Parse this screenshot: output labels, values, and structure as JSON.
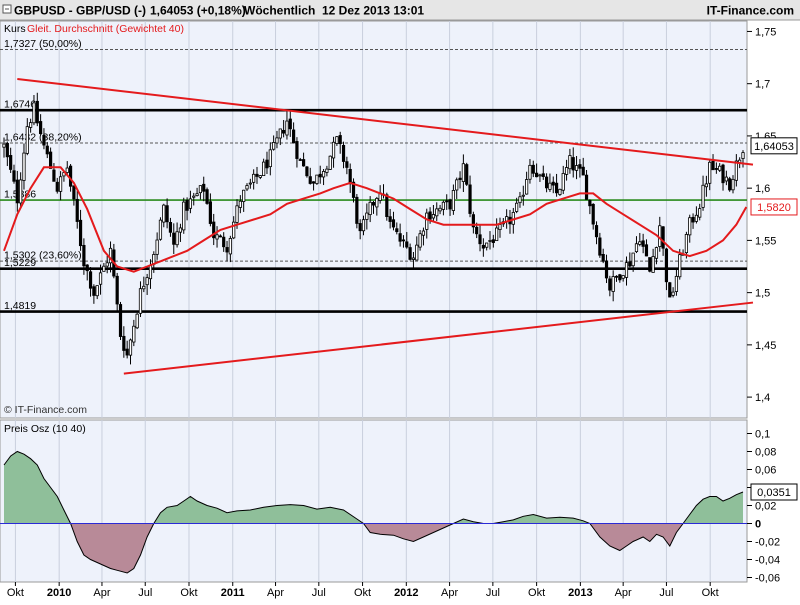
{
  "header": {
    "symbol": "GBPUSD - GBP/USD (-)",
    "price": "1,64053 (+0,18%)",
    "period": "Wöchentlich",
    "datetime": "12 Dez 2013 13:01",
    "brand": "IT-Finance.com"
  },
  "colors": {
    "candle": "#000000",
    "moving_average": "#e41a1c",
    "trend_line": "#e41a1c",
    "support_line": "#000000",
    "green_line": "#2a8a1c",
    "price_badge": "#ffffff",
    "ma_badge": "#e41a1c",
    "osc_positive": "#8fbf9a",
    "osc_negative": "#b88a98",
    "background": "#eef2fb"
  },
  "chart_data": [
    {
      "type": "candlestick",
      "title": "Kurs",
      "legend": "Kurs Gleit. Durchschnitt (Gewichtet 40)",
      "watermark": "© IT-Finance.com",
      "last_price_label": "1,64053",
      "ma_last_label": "1,5820",
      "ylim": [
        1.38,
        1.76
      ],
      "yticks": [
        "1,75",
        "1,7",
        "1,65",
        "1,6",
        "1,55",
        "1,5",
        "1,45",
        "1,4"
      ],
      "ytick_values": [
        1.75,
        1.7,
        1.65,
        1.6,
        1.55,
        1.5,
        1.45,
        1.4
      ],
      "x_start": "2009-09-07",
      "x_end": "2013-12-09",
      "candle_step_days": 7,
      "horizontal_lines": [
        {
          "value": 1.7327,
          "label": "1,7327 (50,00%)",
          "style": "dashed"
        },
        {
          "value": 1.6746,
          "label": "1,6746",
          "style": "solid-black-thick"
        },
        {
          "value": 1.6432,
          "label": "1,6432 (38,20%)",
          "style": "dashed"
        },
        {
          "value": 1.5886,
          "label": "1,5886",
          "style": "solid-green"
        },
        {
          "value": 1.5302,
          "label": "1,5302 (23,60%)",
          "style": "dashed"
        },
        {
          "value": 1.5229,
          "label": "1,5229",
          "style": "solid-black-thick"
        },
        {
          "value": 1.4819,
          "label": "1,4819",
          "style": "solid-black-thick"
        }
      ],
      "trend_lines": [
        {
          "from": {
            "x": "2009-10-05",
            "y": 1.7045
          },
          "to": {
            "x": "2013-12-30",
            "y": 1.6225
          }
        },
        {
          "from": {
            "x": "2010-05-17",
            "y": 1.4225
          },
          "to": {
            "x": "2013-12-30",
            "y": 1.4905
          }
        }
      ],
      "price_path": [
        [
          "2009-09-07",
          1.64
        ],
        [
          "2009-10-05",
          1.59
        ],
        [
          "2009-10-26",
          1.66
        ],
        [
          "2009-11-09",
          1.675
        ],
        [
          "2009-11-30",
          1.64
        ],
        [
          "2009-12-28",
          1.6
        ],
        [
          "2010-01-18",
          1.62
        ],
        [
          "2010-02-22",
          1.53
        ],
        [
          "2010-03-15",
          1.5
        ],
        [
          "2010-04-19",
          1.54
        ],
        [
          "2010-05-10",
          1.46
        ],
        [
          "2010-05-24",
          1.44
        ],
        [
          "2010-06-21",
          1.5
        ],
        [
          "2010-07-19",
          1.54
        ],
        [
          "2010-08-09",
          1.58
        ],
        [
          "2010-08-30",
          1.545
        ],
        [
          "2010-09-20",
          1.58
        ],
        [
          "2010-10-11",
          1.59
        ],
        [
          "2010-11-01",
          1.6
        ],
        [
          "2010-11-22",
          1.555
        ],
        [
          "2010-12-20",
          1.545
        ],
        [
          "2011-01-17",
          1.59
        ],
        [
          "2011-02-28",
          1.615
        ],
        [
          "2011-03-21",
          1.63
        ],
        [
          "2011-04-25",
          1.665
        ],
        [
          "2011-05-23",
          1.625
        ],
        [
          "2011-06-20",
          1.605
        ],
        [
          "2011-07-18",
          1.625
        ],
        [
          "2011-08-08",
          1.645
        ],
        [
          "2011-08-29",
          1.62
        ],
        [
          "2011-09-26",
          1.555
        ],
        [
          "2011-10-17",
          1.58
        ],
        [
          "2011-11-07",
          1.6
        ],
        [
          "2011-11-28",
          1.565
        ],
        [
          "2011-12-19",
          1.55
        ],
        [
          "2012-01-16",
          1.535
        ],
        [
          "2012-02-13",
          1.575
        ],
        [
          "2012-03-12",
          1.58
        ],
        [
          "2012-04-02",
          1.585
        ],
        [
          "2012-04-30",
          1.62
        ],
        [
          "2012-05-21",
          1.56
        ],
        [
          "2012-06-11",
          1.545
        ],
        [
          "2012-07-09",
          1.555
        ],
        [
          "2012-08-06",
          1.57
        ],
        [
          "2012-08-27",
          1.585
        ],
        [
          "2012-09-17",
          1.625
        ],
        [
          "2012-10-15",
          1.605
        ],
        [
          "2012-11-12",
          1.595
        ],
        [
          "2012-12-10",
          1.625
        ],
        [
          "2013-01-07",
          1.61
        ],
        [
          "2013-02-04",
          1.555
        ],
        [
          "2013-03-04",
          1.505
        ],
        [
          "2013-03-18",
          1.515
        ],
        [
          "2013-04-15",
          1.53
        ],
        [
          "2013-05-06",
          1.555
        ],
        [
          "2013-05-27",
          1.52
        ],
        [
          "2013-06-17",
          1.565
        ],
        [
          "2013-07-08",
          1.49
        ],
        [
          "2013-07-29",
          1.53
        ],
        [
          "2013-08-19",
          1.565
        ],
        [
          "2013-09-09",
          1.585
        ],
        [
          "2013-09-30",
          1.62
        ],
        [
          "2013-10-21",
          1.615
        ],
        [
          "2013-11-11",
          1.605
        ],
        [
          "2013-12-09",
          1.64
        ]
      ],
      "ma_path": [
        [
          "2009-09-07",
          1.54
        ],
        [
          "2009-10-05",
          1.575
        ],
        [
          "2009-11-02",
          1.6
        ],
        [
          "2009-11-30",
          1.62
        ],
        [
          "2010-01-04",
          1.62
        ],
        [
          "2010-02-01",
          1.605
        ],
        [
          "2010-03-01",
          1.58
        ],
        [
          "2010-04-05",
          1.54
        ],
        [
          "2010-05-03",
          1.525
        ],
        [
          "2010-06-07",
          1.52
        ],
        [
          "2010-07-05",
          1.525
        ],
        [
          "2010-08-02",
          1.53
        ],
        [
          "2010-08-30",
          1.535
        ],
        [
          "2010-09-27",
          1.54
        ],
        [
          "2010-11-01",
          1.55
        ],
        [
          "2010-12-06",
          1.56
        ],
        [
          "2011-01-10",
          1.565
        ],
        [
          "2011-02-14",
          1.57
        ],
        [
          "2011-03-21",
          1.575
        ],
        [
          "2011-04-25",
          1.585
        ],
        [
          "2011-05-30",
          1.59
        ],
        [
          "2011-07-04",
          1.595
        ],
        [
          "2011-08-01",
          1.6
        ],
        [
          "2011-09-05",
          1.605
        ],
        [
          "2011-10-10",
          1.6
        ],
        [
          "2011-11-07",
          1.595
        ],
        [
          "2011-12-05",
          1.59
        ],
        [
          "2012-01-09",
          1.58
        ],
        [
          "2012-02-13",
          1.57
        ],
        [
          "2012-03-19",
          1.565
        ],
        [
          "2012-04-23",
          1.565
        ],
        [
          "2012-06-04",
          1.565
        ],
        [
          "2012-07-09",
          1.565
        ],
        [
          "2012-08-13",
          1.57
        ],
        [
          "2012-09-17",
          1.575
        ],
        [
          "2012-10-22",
          1.585
        ],
        [
          "2012-11-26",
          1.59
        ],
        [
          "2012-12-31",
          1.595
        ],
        [
          "2013-01-28",
          1.595
        ],
        [
          "2013-02-25",
          1.585
        ],
        [
          "2013-04-01",
          1.575
        ],
        [
          "2013-05-06",
          1.565
        ],
        [
          "2013-06-10",
          1.555
        ],
        [
          "2013-07-15",
          1.54
        ],
        [
          "2013-08-19",
          1.535
        ],
        [
          "2013-09-23",
          1.54
        ],
        [
          "2013-10-28",
          1.55
        ],
        [
          "2013-11-25",
          1.565
        ],
        [
          "2013-12-16",
          1.582
        ]
      ]
    },
    {
      "type": "area",
      "title": "Preis Osz (10 40)",
      "last_value_label": "0,0351",
      "ylim": [
        -0.065,
        0.115
      ],
      "yticks": [
        "0,1",
        "0,08",
        "0,06",
        "0,04",
        "0,02",
        "0",
        "-0,02",
        "-0,04",
        "-0,06"
      ],
      "ytick_values": [
        0.1,
        0.08,
        0.06,
        0.04,
        0.02,
        0,
        -0.02,
        -0.04,
        -0.06
      ],
      "x_start": "2009-09-07",
      "x_end": "2013-12-09",
      "points": [
        [
          "2009-09-07",
          0.065
        ],
        [
          "2009-09-21",
          0.075
        ],
        [
          "2009-10-05",
          0.08
        ],
        [
          "2009-10-19",
          0.077
        ],
        [
          "2009-11-02",
          0.072
        ],
        [
          "2009-11-16",
          0.065
        ],
        [
          "2009-11-30",
          0.05
        ],
        [
          "2009-12-14",
          0.04
        ],
        [
          "2009-12-28",
          0.03
        ],
        [
          "2010-01-11",
          0.015
        ],
        [
          "2010-01-25",
          0.0
        ],
        [
          "2010-02-08",
          -0.02
        ],
        [
          "2010-02-22",
          -0.035
        ],
        [
          "2010-03-08",
          -0.04
        ],
        [
          "2010-03-29",
          -0.045
        ],
        [
          "2010-04-19",
          -0.05
        ],
        [
          "2010-05-03",
          -0.052
        ],
        [
          "2010-05-24",
          -0.055
        ],
        [
          "2010-06-07",
          -0.05
        ],
        [
          "2010-06-21",
          -0.035
        ],
        [
          "2010-07-05",
          -0.015
        ],
        [
          "2010-07-19",
          0.0
        ],
        [
          "2010-08-02",
          0.012
        ],
        [
          "2010-08-16",
          0.018
        ],
        [
          "2010-09-06",
          0.02
        ],
        [
          "2010-09-20",
          0.025
        ],
        [
          "2010-10-04",
          0.03
        ],
        [
          "2010-10-18",
          0.025
        ],
        [
          "2010-11-08",
          0.02
        ],
        [
          "2010-11-29",
          0.017
        ],
        [
          "2010-12-20",
          0.012
        ],
        [
          "2011-01-10",
          0.014
        ],
        [
          "2011-02-07",
          0.015
        ],
        [
          "2011-03-07",
          0.018
        ],
        [
          "2011-04-04",
          0.02
        ],
        [
          "2011-05-02",
          0.021
        ],
        [
          "2011-05-30",
          0.02
        ],
        [
          "2011-06-27",
          0.016
        ],
        [
          "2011-07-25",
          0.018
        ],
        [
          "2011-08-22",
          0.015
        ],
        [
          "2011-09-19",
          0.005
        ],
        [
          "2011-10-03",
          0.0
        ],
        [
          "2011-10-17",
          -0.01
        ],
        [
          "2011-11-07",
          -0.012
        ],
        [
          "2011-12-05",
          -0.013
        ],
        [
          "2011-12-26",
          -0.017
        ],
        [
          "2012-01-16",
          -0.02
        ],
        [
          "2012-02-06",
          -0.015
        ],
        [
          "2012-02-27",
          -0.01
        ],
        [
          "2012-03-19",
          -0.005
        ],
        [
          "2012-04-09",
          0.0
        ],
        [
          "2012-04-30",
          0.005
        ],
        [
          "2012-05-21",
          0.002
        ],
        [
          "2012-06-11",
          0.0
        ],
        [
          "2012-07-02",
          0.0
        ],
        [
          "2012-07-23",
          0.002
        ],
        [
          "2012-08-13",
          0.004
        ],
        [
          "2012-09-03",
          0.008
        ],
        [
          "2012-09-24",
          0.01
        ],
        [
          "2012-10-22",
          0.006
        ],
        [
          "2012-11-19",
          0.007
        ],
        [
          "2012-12-17",
          0.006
        ],
        [
          "2013-01-07",
          0.003
        ],
        [
          "2013-01-21",
          0.0
        ],
        [
          "2013-02-11",
          -0.015
        ],
        [
          "2013-03-04",
          -0.025
        ],
        [
          "2013-03-25",
          -0.03
        ],
        [
          "2013-04-08",
          -0.025
        ],
        [
          "2013-04-22",
          -0.02
        ],
        [
          "2013-05-13",
          -0.015
        ],
        [
          "2013-05-27",
          -0.02
        ],
        [
          "2013-06-10",
          -0.012
        ],
        [
          "2013-06-24",
          -0.015
        ],
        [
          "2013-07-08",
          -0.025
        ],
        [
          "2013-07-22",
          -0.01
        ],
        [
          "2013-08-05",
          0.0
        ],
        [
          "2013-08-19",
          0.01
        ],
        [
          "2013-09-02",
          0.02
        ],
        [
          "2013-09-16",
          0.027
        ],
        [
          "2013-09-30",
          0.03
        ],
        [
          "2013-10-14",
          0.03
        ],
        [
          "2013-10-28",
          0.025
        ],
        [
          "2013-11-11",
          0.028
        ],
        [
          "2013-11-25",
          0.032
        ],
        [
          "2013-12-09",
          0.035
        ]
      ]
    }
  ],
  "x_axis": {
    "labels": [
      {
        "text": "Okt",
        "date": "2009-10-01",
        "bold": false
      },
      {
        "text": "2010",
        "date": "2010-01-01",
        "bold": true
      },
      {
        "text": "Apr",
        "date": "2010-04-01",
        "bold": false
      },
      {
        "text": "Jul",
        "date": "2010-07-01",
        "bold": false
      },
      {
        "text": "Okt",
        "date": "2010-10-01",
        "bold": false
      },
      {
        "text": "2011",
        "date": "2011-01-01",
        "bold": true
      },
      {
        "text": "Apr",
        "date": "2011-04-01",
        "bold": false
      },
      {
        "text": "Jul",
        "date": "2011-07-01",
        "bold": false
      },
      {
        "text": "Okt",
        "date": "2011-10-01",
        "bold": false
      },
      {
        "text": "2012",
        "date": "2012-01-01",
        "bold": true
      },
      {
        "text": "Apr",
        "date": "2012-04-01",
        "bold": false
      },
      {
        "text": "Jul",
        "date": "2012-07-01",
        "bold": false
      },
      {
        "text": "Okt",
        "date": "2012-10-01",
        "bold": false
      },
      {
        "text": "2013",
        "date": "2013-01-01",
        "bold": true
      },
      {
        "text": "Apr",
        "date": "2013-04-01",
        "bold": false
      },
      {
        "text": "Jul",
        "date": "2013-07-01",
        "bold": false
      },
      {
        "text": "Okt",
        "date": "2013-10-01",
        "bold": false
      }
    ]
  }
}
